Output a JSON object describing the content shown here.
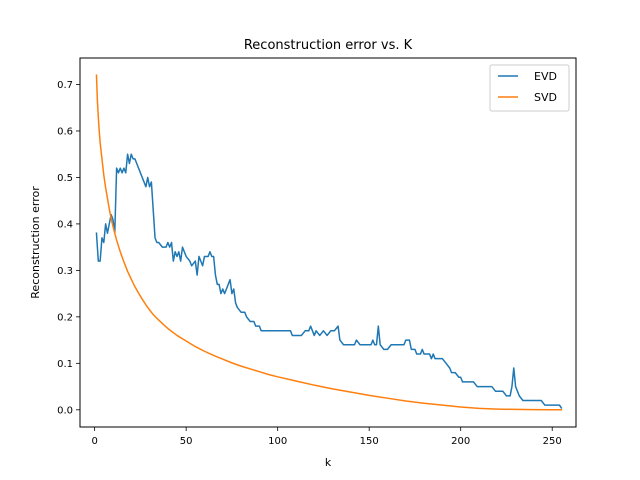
{
  "chart_data": {
    "type": "line",
    "title": "Reconstruction error vs. K",
    "xlabel": "k",
    "ylabel": "Reconstruction error",
    "xlim": [
      -8,
      263
    ],
    "ylim": [
      -0.037,
      0.757
    ],
    "xticks": [
      0,
      50,
      100,
      150,
      200,
      250
    ],
    "yticks": [
      0.0,
      0.1,
      0.2,
      0.3,
      0.4,
      0.5,
      0.6,
      0.7
    ],
    "ytick_labels": [
      "0.0",
      "0.1",
      "0.2",
      "0.3",
      "0.4",
      "0.5",
      "0.6",
      "0.7"
    ],
    "grid": false,
    "legend_position": "top-right",
    "series": [
      {
        "name": "EVD",
        "color": "#1f77b4",
        "points": [
          [
            1,
            0.38
          ],
          [
            2,
            0.32
          ],
          [
            3,
            0.32
          ],
          [
            4,
            0.37
          ],
          [
            5,
            0.36
          ],
          [
            6,
            0.4
          ],
          [
            7,
            0.38
          ],
          [
            8,
            0.4
          ],
          [
            9,
            0.42
          ],
          [
            10,
            0.41
          ],
          [
            11,
            0.38
          ],
          [
            12,
            0.52
          ],
          [
            13,
            0.51
          ],
          [
            14,
            0.52
          ],
          [
            15,
            0.51
          ],
          [
            16,
            0.52
          ],
          [
            17,
            0.51
          ],
          [
            18,
            0.55
          ],
          [
            19,
            0.53
          ],
          [
            20,
            0.55
          ],
          [
            21,
            0.54
          ],
          [
            22,
            0.54
          ],
          [
            24,
            0.52
          ],
          [
            26,
            0.5
          ],
          [
            28,
            0.48
          ],
          [
            29,
            0.5
          ],
          [
            30,
            0.48
          ],
          [
            31,
            0.49
          ],
          [
            32,
            0.43
          ],
          [
            33,
            0.37
          ],
          [
            34,
            0.36
          ],
          [
            35,
            0.36
          ],
          [
            37,
            0.35
          ],
          [
            39,
            0.35
          ],
          [
            40,
            0.36
          ],
          [
            41,
            0.35
          ],
          [
            42,
            0.36
          ],
          [
            43,
            0.32
          ],
          [
            44,
            0.34
          ],
          [
            45,
            0.33
          ],
          [
            46,
            0.34
          ],
          [
            47,
            0.32
          ],
          [
            48,
            0.35
          ],
          [
            50,
            0.33
          ],
          [
            52,
            0.32
          ],
          [
            53,
            0.31
          ],
          [
            55,
            0.32
          ],
          [
            56,
            0.29
          ],
          [
            57,
            0.33
          ],
          [
            58,
            0.32
          ],
          [
            59,
            0.31
          ],
          [
            60,
            0.33
          ],
          [
            62,
            0.33
          ],
          [
            63,
            0.34
          ],
          [
            64,
            0.33
          ],
          [
            65,
            0.33
          ],
          [
            66,
            0.29
          ],
          [
            67,
            0.27
          ],
          [
            68,
            0.27
          ],
          [
            69,
            0.25
          ],
          [
            70,
            0.26
          ],
          [
            71,
            0.25
          ],
          [
            72,
            0.26
          ],
          [
            73,
            0.27
          ],
          [
            74,
            0.28
          ],
          [
            75,
            0.25
          ],
          [
            76,
            0.26
          ],
          [
            77,
            0.23
          ],
          [
            78,
            0.22
          ],
          [
            80,
            0.21
          ],
          [
            82,
            0.21
          ],
          [
            83,
            0.2
          ],
          [
            85,
            0.19
          ],
          [
            86,
            0.19
          ],
          [
            87,
            0.19
          ],
          [
            88,
            0.18
          ],
          [
            90,
            0.18
          ],
          [
            91,
            0.17
          ],
          [
            93,
            0.17
          ],
          [
            95,
            0.17
          ],
          [
            97,
            0.17
          ],
          [
            100,
            0.17
          ],
          [
            103,
            0.17
          ],
          [
            105,
            0.17
          ],
          [
            107,
            0.17
          ],
          [
            108,
            0.16
          ],
          [
            110,
            0.16
          ],
          [
            112,
            0.16
          ],
          [
            113,
            0.16
          ],
          [
            115,
            0.17
          ],
          [
            117,
            0.17
          ],
          [
            118,
            0.18
          ],
          [
            119,
            0.17
          ],
          [
            120,
            0.16
          ],
          [
            121,
            0.17
          ],
          [
            123,
            0.16
          ],
          [
            125,
            0.17
          ],
          [
            127,
            0.16
          ],
          [
            129,
            0.17
          ],
          [
            131,
            0.17
          ],
          [
            133,
            0.18
          ],
          [
            134,
            0.15
          ],
          [
            136,
            0.14
          ],
          [
            138,
            0.14
          ],
          [
            140,
            0.14
          ],
          [
            142,
            0.14
          ],
          [
            143,
            0.15
          ],
          [
            145,
            0.14
          ],
          [
            147,
            0.14
          ],
          [
            149,
            0.14
          ],
          [
            151,
            0.14
          ],
          [
            152,
            0.15
          ],
          [
            153,
            0.14
          ],
          [
            154,
            0.14
          ],
          [
            155,
            0.18
          ],
          [
            156,
            0.14
          ],
          [
            158,
            0.13
          ],
          [
            160,
            0.13
          ],
          [
            162,
            0.14
          ],
          [
            163,
            0.14
          ],
          [
            165,
            0.14
          ],
          [
            167,
            0.14
          ],
          [
            169,
            0.14
          ],
          [
            170,
            0.15
          ],
          [
            172,
            0.15
          ],
          [
            173,
            0.13
          ],
          [
            175,
            0.13
          ],
          [
            176,
            0.12
          ],
          [
            178,
            0.12
          ],
          [
            179,
            0.13
          ],
          [
            180,
            0.12
          ],
          [
            182,
            0.12
          ],
          [
            183,
            0.12
          ],
          [
            184,
            0.11
          ],
          [
            185,
            0.12
          ],
          [
            186,
            0.11
          ],
          [
            188,
            0.11
          ],
          [
            190,
            0.11
          ],
          [
            192,
            0.1
          ],
          [
            194,
            0.09
          ],
          [
            195,
            0.08
          ],
          [
            197,
            0.08
          ],
          [
            199,
            0.07
          ],
          [
            200,
            0.07
          ],
          [
            201,
            0.06
          ],
          [
            203,
            0.06
          ],
          [
            205,
            0.06
          ],
          [
            207,
            0.06
          ],
          [
            209,
            0.05
          ],
          [
            211,
            0.05
          ],
          [
            213,
            0.05
          ],
          [
            215,
            0.05
          ],
          [
            217,
            0.05
          ],
          [
            219,
            0.04
          ],
          [
            221,
            0.04
          ],
          [
            223,
            0.04
          ],
          [
            225,
            0.03
          ],
          [
            227,
            0.03
          ],
          [
            228,
            0.05
          ],
          [
            229,
            0.09
          ],
          [
            230,
            0.05
          ],
          [
            232,
            0.03
          ],
          [
            234,
            0.02
          ],
          [
            236,
            0.02
          ],
          [
            238,
            0.02
          ],
          [
            240,
            0.02
          ],
          [
            242,
            0.02
          ],
          [
            244,
            0.02
          ],
          [
            246,
            0.01
          ],
          [
            248,
            0.01
          ],
          [
            250,
            0.01
          ],
          [
            252,
            0.01
          ],
          [
            254,
            0.01
          ],
          [
            255,
            0.004
          ]
        ]
      },
      {
        "name": "SVD",
        "color": "#ff7f0e",
        "points": [
          [
            1,
            0.72
          ],
          [
            1.5,
            0.665
          ],
          [
            2,
            0.63
          ],
          [
            2.5,
            0.6
          ],
          [
            3,
            0.575
          ],
          [
            4,
            0.54
          ],
          [
            5,
            0.505
          ],
          [
            6,
            0.478
          ],
          [
            7,
            0.455
          ],
          [
            8,
            0.432
          ],
          [
            9,
            0.412
          ],
          [
            10,
            0.395
          ],
          [
            12,
            0.365
          ],
          [
            14,
            0.34
          ],
          [
            16,
            0.318
          ],
          [
            18,
            0.298
          ],
          [
            20,
            0.281
          ],
          [
            22,
            0.265
          ],
          [
            24,
            0.251
          ],
          [
            26,
            0.238
          ],
          [
            28,
            0.226
          ],
          [
            30,
            0.215
          ],
          [
            32,
            0.205
          ],
          [
            35,
            0.193
          ],
          [
            38,
            0.182
          ],
          [
            40,
            0.175
          ],
          [
            45,
            0.16
          ],
          [
            50,
            0.148
          ],
          [
            55,
            0.136
          ],
          [
            60,
            0.126
          ],
          [
            65,
            0.117
          ],
          [
            70,
            0.109
          ],
          [
            75,
            0.101
          ],
          [
            80,
            0.094
          ],
          [
            85,
            0.088
          ],
          [
            90,
            0.082
          ],
          [
            95,
            0.076
          ],
          [
            100,
            0.071
          ],
          [
            110,
            0.062
          ],
          [
            120,
            0.053
          ],
          [
            130,
            0.045
          ],
          [
            140,
            0.038
          ],
          [
            150,
            0.031
          ],
          [
            160,
            0.025
          ],
          [
            170,
            0.019
          ],
          [
            180,
            0.014
          ],
          [
            190,
            0.01
          ],
          [
            200,
            0.006
          ],
          [
            210,
            0.003
          ],
          [
            220,
            0.0015
          ],
          [
            230,
            0.0008
          ],
          [
            240,
            0.0004
          ],
          [
            250,
            0.0002
          ],
          [
            255,
            0.0001
          ]
        ]
      }
    ]
  }
}
